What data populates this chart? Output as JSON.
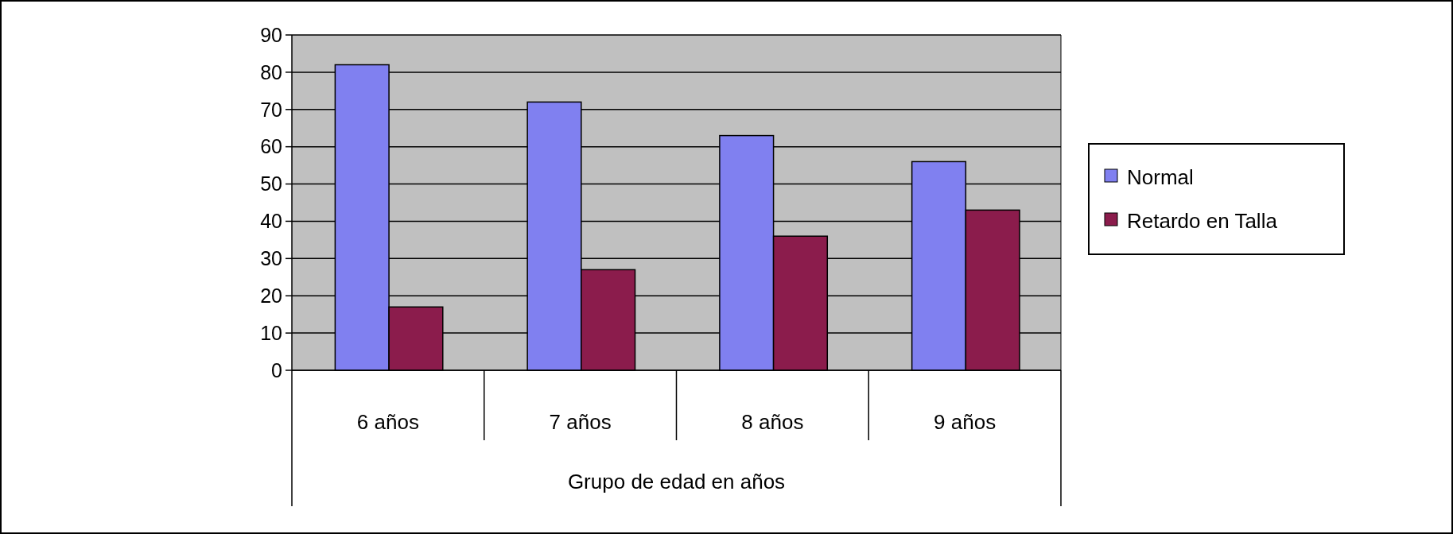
{
  "chart_data": {
    "type": "bar",
    "xlabel": "Grupo de edad en años",
    "categories": [
      "6 años",
      "7 años",
      "8 años",
      "9 años"
    ],
    "series": [
      {
        "name": "Normal",
        "color": "#8080f0",
        "values": [
          82,
          72,
          63,
          56
        ]
      },
      {
        "name": "Retardo en Talla",
        "color": "#8b1c4c",
        "values": [
          17,
          27,
          36,
          43
        ]
      }
    ],
    "ylim": [
      0,
      90
    ],
    "yticks": [
      0,
      10,
      20,
      30,
      40,
      50,
      60,
      70,
      80,
      90
    ],
    "grid": "y",
    "legend": "right"
  }
}
